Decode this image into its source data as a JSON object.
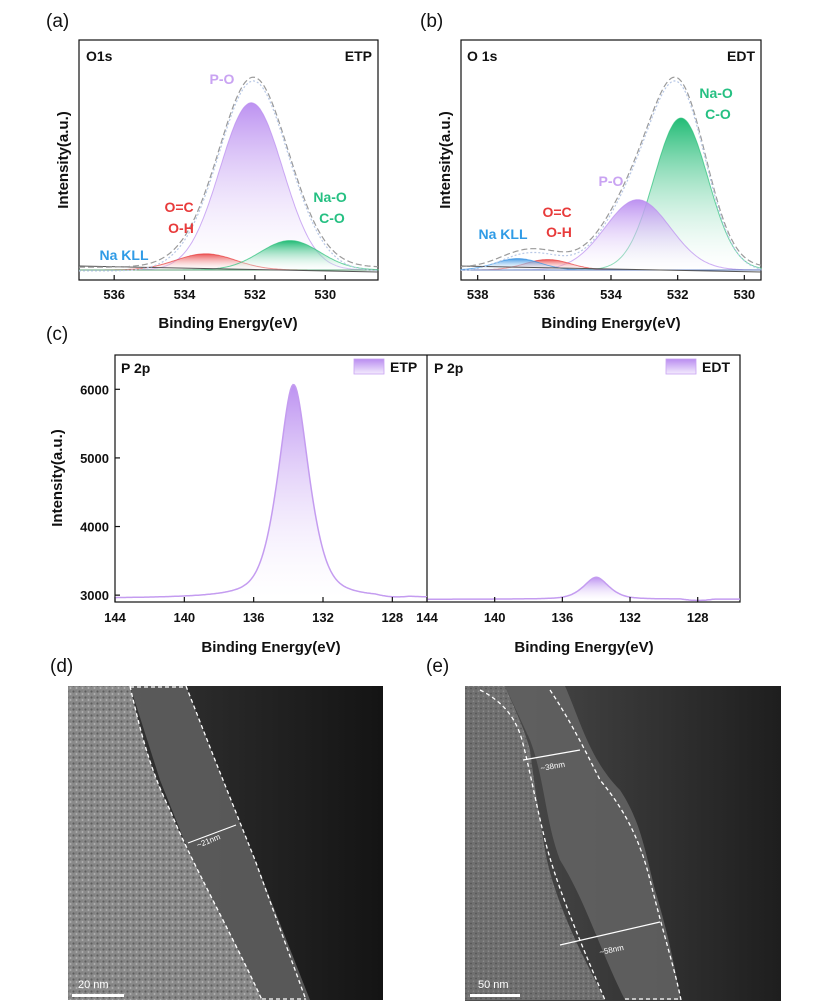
{
  "chart_data": [
    {
      "id": "a",
      "panel": "(a)",
      "type": "area",
      "title": "O1s",
      "tag": "ETP",
      "xlabel": "Binding Energy(eV)",
      "ylabel": "Intensity(a.u.)",
      "xlim": [
        537,
        528.5
      ],
      "x_ticks": [
        536,
        534,
        532,
        530
      ],
      "y_ticks_visible": false,
      "series": [
        {
          "name": "P-O",
          "label": "P-O",
          "center": 532.1,
          "height": 0.88,
          "fwhm": 2.1,
          "color": "#b98cf0"
        },
        {
          "name": "O=C / O-H",
          "label": "O=C\nO-H",
          "center": 533.4,
          "height": 0.085,
          "fwhm": 2.0,
          "color": "#e83a3a"
        },
        {
          "name": "Na-O / C-O",
          "label": "Na-O\nC-O",
          "center": 531.0,
          "height": 0.155,
          "fwhm": 2.0,
          "color": "#2bc07a"
        },
        {
          "name": "Na KLL",
          "label": "Na KLL",
          "center": 536.5,
          "height": 0.0,
          "fwhm": 2.0,
          "color": "#2f8fe3"
        }
      ],
      "envelope_max": 1.0
    },
    {
      "id": "b",
      "panel": "(b)",
      "type": "area",
      "title": "O 1s",
      "tag": "EDT",
      "xlabel": "Binding Energy(eV)",
      "ylabel": "Intensity(a.u.)",
      "xlim": [
        538.5,
        529.5
      ],
      "x_ticks": [
        538,
        536,
        534,
        532,
        530
      ],
      "y_ticks_visible": false,
      "series": [
        {
          "name": "Na-O / C-O",
          "label": "Na-O\nC-O",
          "center": 531.9,
          "height": 0.8,
          "fwhm": 1.9,
          "color": "#2bc07a"
        },
        {
          "name": "P-O",
          "label": "P-O",
          "center": 533.2,
          "height": 0.37,
          "fwhm": 2.3,
          "color": "#b98cf0"
        },
        {
          "name": "O=C / O-H",
          "label": "O=C\nO-H",
          "center": 535.9,
          "height": 0.055,
          "fwhm": 1.6,
          "color": "#e83a3a"
        },
        {
          "name": "Na KLL",
          "label": "Na KLL",
          "center": 536.8,
          "height": 0.06,
          "fwhm": 1.6,
          "color": "#2f8fe3"
        }
      ],
      "envelope_max": 1.0
    },
    {
      "id": "c",
      "panel": "(c)",
      "type": "line",
      "title": "P 2p",
      "xlabel": "Binding Energy(eV)",
      "ylabel": "Intensity(a.u.)",
      "ylim": [
        2900,
        6500
      ],
      "y_ticks": [
        3000,
        4000,
        5000,
        6000
      ],
      "subplots": [
        {
          "legend": "ETP",
          "xlim": [
            144,
            126
          ],
          "x_ticks": [
            144,
            140,
            136,
            132,
            128
          ],
          "baseline": 2950,
          "peak_center": 133.7,
          "peak_height": 6070,
          "fwhm": 1.9
        },
        {
          "legend": "EDT",
          "xlim": [
            144,
            125.5
          ],
          "x_ticks": [
            144,
            140,
            136,
            132,
            128
          ],
          "baseline": 2940,
          "peak_center": 134.0,
          "peak_height": 3260,
          "fwhm": 1.6
        }
      ]
    }
  ],
  "tem": [
    {
      "panel": "(d)",
      "scale_bar": "20 nm",
      "thickness": "~21nm"
    },
    {
      "panel": "(e)",
      "scale_bar": "50 nm",
      "thickness_top": "~38nm",
      "thickness_bottom": "~58nm"
    }
  ]
}
